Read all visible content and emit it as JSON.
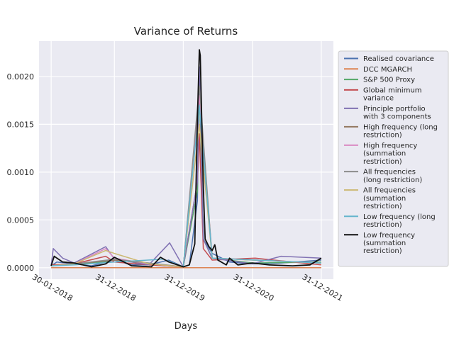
{
  "chart_data": {
    "type": "line",
    "title": "Variance of Returns",
    "xlabel": "Days",
    "ylabel": "",
    "x_ticks": [
      "30-01-2018",
      "31-12-2018",
      "31-12-2019",
      "31-12-2020",
      "31-12-2021"
    ],
    "y_ticks": [
      "0.0000",
      "0.0005",
      "0.0010",
      "0.0015",
      "0.0020"
    ],
    "xlim": [
      "30-01-2018",
      "31-12-2021"
    ],
    "ylim": [
      -0.00012,
      0.00237
    ],
    "grid": true,
    "legend_position": "right",
    "series": [
      {
        "name": "Realised covariance",
        "color": "#4c72b0",
        "x": [
          "30-01-2018",
          "01-03-2018",
          "01-06-2018",
          "01-09-2018",
          "15-11-2018",
          "31-12-2018",
          "01-04-2019",
          "01-07-2019",
          "15-10-2019",
          "31-12-2019",
          "01-02-2020",
          "15-03-2020",
          "25-03-2020",
          "15-04-2020",
          "01-06-2020",
          "01-09-2020",
          "31-12-2020",
          "01-06-2021",
          "31-12-2021"
        ],
        "y": [
          2e-05,
          6e-05,
          4e-05,
          2e-05,
          6e-05,
          8e-05,
          3e-05,
          3e-05,
          8e-05,
          1e-05,
          3e-05,
          0.0007,
          0.0021,
          0.0003,
          0.00015,
          6e-05,
          4e-05,
          5e-05,
          8e-05
        ]
      },
      {
        "name": "DCC MGARCH",
        "color": "#dd8452",
        "x": [
          "30-01-2018",
          "31-12-2021"
        ],
        "y": [
          0.0,
          0.0
        ]
      },
      {
        "name": "S&P 500 Proxy",
        "color": "#55a868",
        "x": [
          "30-01-2018",
          "01-06-2018",
          "15-11-2018",
          "31-12-2018",
          "01-07-2019",
          "31-12-2019",
          "15-03-2020",
          "25-03-2020",
          "15-04-2020",
          "01-06-2020",
          "31-12-2020",
          "31-12-2021"
        ],
        "y": [
          2e-05,
          4e-05,
          6e-05,
          0.0001,
          3e-05,
          1e-05,
          0.0008,
          0.0019,
          0.0003,
          0.0001,
          5e-05,
          6e-05
        ]
      },
      {
        "name": "Global minimum variance",
        "color": "#c44e52",
        "x": [
          "30-01-2018",
          "01-06-2018",
          "15-11-2018",
          "31-12-2018",
          "01-07-2019",
          "31-12-2019",
          "15-03-2020",
          "25-03-2020",
          "15-04-2020",
          "01-06-2020",
          "15-01-2021",
          "31-12-2021"
        ],
        "y": [
          3e-05,
          4e-05,
          0.00012,
          6e-05,
          3e-05,
          1e-05,
          0.0009,
          0.0014,
          0.0002,
          8e-05,
          0.0001,
          3e-05
        ]
      },
      {
        "name": "Principle portfolio with 3 components",
        "color": "#8172b3",
        "x": [
          "30-01-2018",
          "10-02-2018",
          "01-04-2018",
          "01-06-2018",
          "15-11-2018",
          "31-12-2018",
          "01-07-2019",
          "20-10-2019",
          "31-12-2019",
          "15-03-2020",
          "25-03-2020",
          "15-04-2020",
          "01-06-2020",
          "31-12-2020",
          "01-06-2021",
          "31-12-2021"
        ],
        "y": [
          2e-05,
          0.0002,
          0.0001,
          5e-05,
          0.00022,
          9e-05,
          3e-05,
          0.00026,
          1e-05,
          0.0009,
          0.0021,
          0.0003,
          0.0001,
          4e-05,
          0.00012,
          0.0001
        ]
      },
      {
        "name": "High frequency (long restriction)",
        "color": "#937860",
        "x": [
          "30-01-2018",
          "01-06-2018",
          "31-12-2018",
          "31-12-2019",
          "25-03-2020",
          "01-06-2020",
          "31-12-2021"
        ],
        "y": [
          2e-05,
          4e-05,
          8e-05,
          1e-05,
          0.0018,
          0.0001,
          5e-05
        ]
      },
      {
        "name": "High frequency (summation restriction)",
        "color": "#da8bc3",
        "x": [
          "30-01-2018",
          "01-06-2018",
          "15-11-2018",
          "31-12-2018",
          "01-07-2019",
          "31-12-2019",
          "25-03-2020",
          "01-06-2020",
          "31-12-2021"
        ],
        "y": [
          2e-05,
          4e-05,
          0.0002,
          0.0001,
          4e-05,
          1e-05,
          0.0018,
          0.0001,
          5e-05
        ]
      },
      {
        "name": "All frequencies (long restriction)",
        "color": "#8c8c8c",
        "x": [
          "30-01-2018",
          "01-06-2018",
          "31-12-2018",
          "31-12-2019",
          "25-03-2020",
          "01-06-2020",
          "31-12-2021"
        ],
        "y": [
          2e-05,
          4e-05,
          9e-05,
          1e-05,
          0.0019,
          0.0001,
          5e-05
        ]
      },
      {
        "name": "All frequencies (summation restriction)",
        "color": "#ccb974",
        "x": [
          "30-01-2018",
          "01-06-2018",
          "15-11-2018",
          "31-12-2018",
          "01-07-2019",
          "31-12-2019",
          "25-03-2020",
          "01-06-2020",
          "31-12-2020",
          "31-12-2021"
        ],
        "y": [
          2e-05,
          4e-05,
          0.00018,
          0.00015,
          4e-05,
          1e-05,
          0.0015,
          0.0001,
          8e-05,
          5e-05
        ]
      },
      {
        "name": "Low frequency (long restriction)",
        "color": "#64b5cd",
        "x": [
          "30-01-2018",
          "01-06-2018",
          "31-12-2018",
          "15-09-2019",
          "31-12-2019",
          "25-03-2020",
          "01-06-2020",
          "31-12-2021"
        ],
        "y": [
          2e-05,
          3e-05,
          6e-05,
          9e-05,
          1e-05,
          0.0017,
          0.0001,
          5e-05
        ]
      },
      {
        "name": "Low frequency (summation restriction)",
        "color": "#111111",
        "x": [
          "30-01-2018",
          "15-02-2018",
          "01-04-2018",
          "01-06-2018",
          "01-09-2018",
          "15-11-2018",
          "31-12-2018",
          "01-04-2019",
          "15-07-2019",
          "01-09-2019",
          "15-10-2019",
          "31-12-2019",
          "01-02-2020",
          "01-03-2020",
          "15-03-2020",
          "25-03-2020",
          "30-03-2020",
          "15-04-2020",
          "25-04-2020",
          "15-05-2020",
          "01-06-2020",
          "15-06-2020",
          "01-07-2020",
          "15-08-2020",
          "01-09-2020",
          "15-10-2020",
          "31-12-2020",
          "01-04-2021",
          "01-08-2021",
          "01-11-2021",
          "31-12-2021"
        ],
        "y": [
          2e-05,
          0.00012,
          6e-05,
          5e-05,
          1e-05,
          4e-05,
          0.00011,
          2e-05,
          1e-05,
          0.00011,
          6e-05,
          1e-05,
          3e-05,
          0.00025,
          0.00155,
          0.00228,
          0.00222,
          0.00085,
          0.0003,
          0.00022,
          0.00018,
          0.00024,
          8e-05,
          3e-05,
          0.0001,
          3e-05,
          5e-05,
          3e-05,
          2e-05,
          3e-05,
          0.0001
        ]
      }
    ]
  }
}
